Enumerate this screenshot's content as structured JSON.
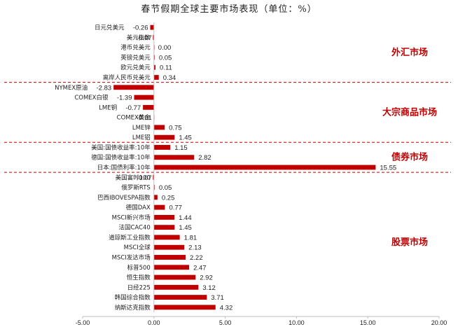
{
  "chart_data": {
    "type": "bar",
    "orientation": "horizontal",
    "title": "春节假期全球主要市场表现（单位：%）",
    "xlim": [
      -5,
      20
    ],
    "xticks": [
      "-5.00",
      "0.00",
      "5.00",
      "10.00",
      "15.00",
      "20.00"
    ],
    "xtick_values": [
      -5,
      0,
      5,
      10,
      15,
      20
    ],
    "bar_color": "#c00000",
    "divider_color": "#c00000",
    "grid": false,
    "categories": [
      "日元兑美元",
      "美元指数",
      "港币兑美元",
      "英镑兑美元",
      "欧元兑美元",
      "离岸人民币兑美元",
      "NYMEX原油",
      "COMEX白银",
      "LME铜",
      "COMEX黄金",
      "LME锌",
      "LME铝",
      "美国:国债收益率:10年",
      "德国:国债收益率:10年",
      "日本:国债利率:10年",
      "美国富时100",
      "俄罗斯RTS",
      "巴西IBOVESPA指数",
      "德国DAX",
      "MSCI新兴市场",
      "法国CAC40",
      "道琼斯工业指数",
      "MSCI全球",
      "MSCI发达市场",
      "标普500",
      "恒生指数",
      "日经225",
      "韩国综合指数",
      "纳斯达克指数"
    ],
    "values": [
      -0.26,
      -0.07,
      0.0,
      0.05,
      0.11,
      0.34,
      -2.83,
      -1.39,
      -0.77,
      -0.01,
      0.75,
      1.45,
      1.15,
      2.82,
      15.55,
      -0.07,
      0.05,
      0.25,
      0.77,
      1.44,
      1.45,
      1.81,
      2.13,
      2.22,
      2.47,
      2.92,
      3.12,
      3.71,
      4.32
    ],
    "value_labels": [
      "-0.26",
      "-0.07",
      "0.00",
      "0.05",
      "0.11",
      "0.34",
      "-2.83",
      "-1.39",
      "-0.77",
      "-0.01",
      "0.75",
      "1.45",
      "1.15",
      "2.82",
      "15.55",
      "-0.07",
      "0.05",
      "0.25",
      "0.77",
      "1.44",
      "1.45",
      "1.81",
      "2.13",
      "2.22",
      "2.47",
      "2.92",
      "3.12",
      "3.71",
      "4.32"
    ],
    "sections": [
      {
        "label": "外汇市场",
        "start": 0,
        "end": 5
      },
      {
        "label": "大宗商品市场",
        "start": 6,
        "end": 11
      },
      {
        "label": "债券市场",
        "start": 12,
        "end": 14
      },
      {
        "label": "股票市场",
        "start": 15,
        "end": 28
      }
    ]
  }
}
